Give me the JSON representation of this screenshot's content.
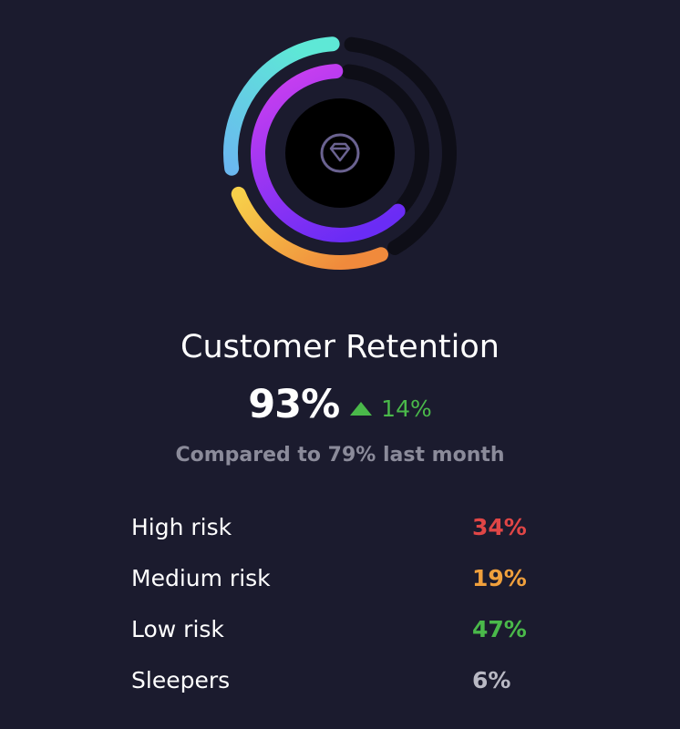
{
  "colors": {
    "background": "#1b1b2e",
    "ring_track": "#0e0e17",
    "center": "#000000",
    "icon": "#6a6290",
    "positive": "#4ab94a",
    "muted": "#8b8b9a"
  },
  "icon": "diamond-icon",
  "title": "Customer Retention",
  "metric": {
    "value": "93%",
    "change": "14%",
    "direction": "up"
  },
  "subtitle": "Compared to 79% last month",
  "risk_items": [
    {
      "label": "High risk",
      "value": "34%",
      "color": "#e04646"
    },
    {
      "label": "Medium risk",
      "value": "19%",
      "color": "#f0a03c"
    },
    {
      "label": "Low risk",
      "value": "47%",
      "color": "#4ab94a"
    },
    {
      "label": "Sleepers",
      "value": "6%",
      "color": "#b9b9c4"
    }
  ],
  "rings": [
    {
      "name": "outer",
      "fill_fraction": 0.47,
      "start_deg": 269,
      "end_deg": 357,
      "gradient": [
        "#5ad7e0",
        "#6ab8f0"
      ],
      "track": true
    },
    {
      "name": "middle",
      "fill_fraction": 0.34,
      "start_deg": 140,
      "end_deg": 357,
      "gradient": [
        "#7a2cf0",
        "#c23cf0"
      ],
      "track": true
    },
    {
      "name": "bottom",
      "fill_fraction": 0.19,
      "start_deg": 110,
      "end_deg": 235,
      "gradient": [
        "#f08a3c",
        "#f5c94a"
      ],
      "track": false
    }
  ]
}
